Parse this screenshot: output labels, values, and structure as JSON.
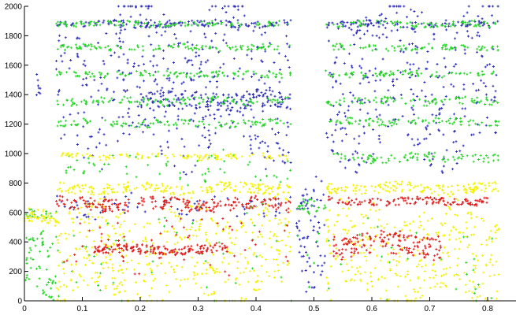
{
  "chart_data": {
    "type": "scatter",
    "title": "",
    "xlabel": "",
    "ylabel": "",
    "xlim": [
      0,
      0.85
    ],
    "ylim": [
      0,
      2000
    ],
    "grid": false,
    "legend": "none",
    "marker": "+",
    "xticks": [
      "0",
      "0.1",
      "0.2",
      "0.3",
      "0.4",
      "0.5",
      "0.6",
      "0.7",
      "0.8"
    ],
    "yticks": [
      "0",
      "200",
      "400",
      "600",
      "800",
      "1000",
      "1200",
      "1400",
      "1600",
      "1800",
      "2000"
    ],
    "colors": {
      "blue": "#2a2ab8",
      "green": "#22d422",
      "yellow": "#f2f200",
      "red": "#e01818"
    },
    "clusters": [
      {
        "color": "blue",
        "x": [
          0.055,
          0.46
        ],
        "y": [
          1000,
          2000
        ],
        "n": 420
      },
      {
        "color": "blue",
        "x": [
          0.52,
          0.82
        ],
        "y": [
          1000,
          2000
        ],
        "n": 330
      },
      {
        "color": "blue",
        "x": [
          0.055,
          0.46
        ],
        "y": [
          1860,
          1900
        ],
        "n": 120
      },
      {
        "color": "blue",
        "x": [
          0.52,
          0.82
        ],
        "y": [
          1850,
          1900
        ],
        "n": 90
      },
      {
        "color": "blue",
        "x": [
          0.2,
          0.46
        ],
        "y": [
          1300,
          1420
        ],
        "n": 150
      },
      {
        "color": "blue",
        "x": [
          0.02,
          0.03
        ],
        "y": [
          1400,
          1550
        ],
        "n": 8
      },
      {
        "color": "blue",
        "x": [
          0.47,
          0.52
        ],
        "y": [
          0,
          750
        ],
        "n": 70
      },
      {
        "color": "blue",
        "x": [
          0.055,
          0.46
        ],
        "y": [
          550,
          720
        ],
        "n": 60
      },
      {
        "color": "green",
        "x": [
          0.055,
          0.46
        ],
        "y": [
          1865,
          1900
        ],
        "n": 110
      },
      {
        "color": "green",
        "x": [
          0.52,
          0.82
        ],
        "y": [
          1860,
          1900
        ],
        "n": 80
      },
      {
        "color": "green",
        "x": [
          0.055,
          0.46
        ],
        "y": [
          1700,
          1740
        ],
        "n": 110
      },
      {
        "color": "green",
        "x": [
          0.52,
          0.82
        ],
        "y": [
          1700,
          1740
        ],
        "n": 80
      },
      {
        "color": "green",
        "x": [
          0.055,
          0.46
        ],
        "y": [
          1520,
          1560
        ],
        "n": 110
      },
      {
        "color": "green",
        "x": [
          0.52,
          0.82
        ],
        "y": [
          1520,
          1560
        ],
        "n": 80
      },
      {
        "color": "green",
        "x": [
          0.055,
          0.46
        ],
        "y": [
          1330,
          1380
        ],
        "n": 120
      },
      {
        "color": "green",
        "x": [
          0.52,
          0.82
        ],
        "y": [
          1330,
          1380
        ],
        "n": 90
      },
      {
        "color": "green",
        "x": [
          0.055,
          0.46
        ],
        "y": [
          1180,
          1230
        ],
        "n": 110
      },
      {
        "color": "green",
        "x": [
          0.52,
          0.82
        ],
        "y": [
          1190,
          1240
        ],
        "n": 90
      },
      {
        "color": "green",
        "x": [
          0.52,
          0.82
        ],
        "y": [
          940,
          1000
        ],
        "n": 90
      },
      {
        "color": "green",
        "x": [
          0.055,
          0.46
        ],
        "y": [
          800,
          1000
        ],
        "n": 60
      },
      {
        "color": "green",
        "x": [
          0.0,
          0.055
        ],
        "y": [
          0,
          450
        ],
        "n": 60
      },
      {
        "color": "green",
        "x": [
          0.0,
          0.055
        ],
        "y": [
          560,
          620
        ],
        "n": 20
      },
      {
        "color": "green",
        "x": [
          0.47,
          0.52
        ],
        "y": [
          600,
          700
        ],
        "n": 25
      },
      {
        "color": "green",
        "x": [
          0.055,
          0.82
        ],
        "y": [
          0,
          600
        ],
        "n": 80
      },
      {
        "color": "yellow",
        "x": [
          0.055,
          0.46
        ],
        "y": [
          960,
          1000
        ],
        "n": 110
      },
      {
        "color": "yellow",
        "x": [
          0.055,
          0.46
        ],
        "y": [
          730,
          800
        ],
        "n": 200
      },
      {
        "color": "yellow",
        "x": [
          0.52,
          0.82
        ],
        "y": [
          730,
          800
        ],
        "n": 150
      },
      {
        "color": "yellow",
        "x": [
          0.0,
          0.06
        ],
        "y": [
          520,
          620
        ],
        "n": 50
      },
      {
        "color": "yellow",
        "x": [
          0.055,
          0.46
        ],
        "y": [
          0,
          640
        ],
        "n": 450
      },
      {
        "color": "yellow",
        "x": [
          0.52,
          0.82
        ],
        "y": [
          0,
          640
        ],
        "n": 330
      },
      {
        "color": "red",
        "x": [
          0.055,
          0.46
        ],
        "y": [
          610,
          700
        ],
        "n": 220
      },
      {
        "color": "red",
        "x": [
          0.52,
          0.8
        ],
        "y": [
          650,
          700
        ],
        "n": 130
      },
      {
        "color": "red",
        "x": [
          0.12,
          0.35
        ],
        "y": [
          320,
          380
        ],
        "n": 160
      },
      {
        "color": "red",
        "x": [
          0.53,
          0.72
        ],
        "y": [
          300,
          460
        ],
        "n": 150
      },
      {
        "color": "red",
        "x": [
          0.055,
          0.46
        ],
        "y": [
          200,
          600
        ],
        "n": 60
      }
    ]
  }
}
